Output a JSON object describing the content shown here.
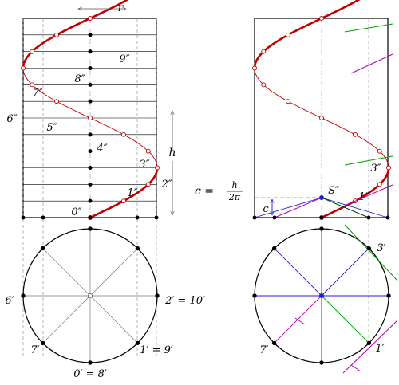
{
  "left_view": {
    "top_labels": {
      "r": "r"
    },
    "side_labels": {
      "h": "h"
    },
    "elevation_labels": [
      "0″",
      "1″",
      "2″",
      "3″",
      "4″",
      "5″",
      "6″",
      "7″",
      "8″",
      "9″"
    ],
    "plan_labels": {
      "p6": "6′",
      "p7": "7′",
      "p0": "0′ = 8′",
      "p1": "1′ = 9′",
      "p2": "2′ = 10′"
    }
  },
  "right_view": {
    "elevation_labels": {
      "s": "S″",
      "one": "1″",
      "three": "3″"
    },
    "c_label": "c",
    "formula": {
      "lhs": "c =",
      "num": "h",
      "den": "2π"
    },
    "plan_labels": {
      "three": "3′",
      "seven": "7′",
      "one": "1′"
    }
  },
  "colors": {
    "helix": "#c00000",
    "blue": "#2020d0",
    "green": "#00a000",
    "magenta": "#b000b0",
    "gray": "#888888",
    "dark": "#000000"
  }
}
